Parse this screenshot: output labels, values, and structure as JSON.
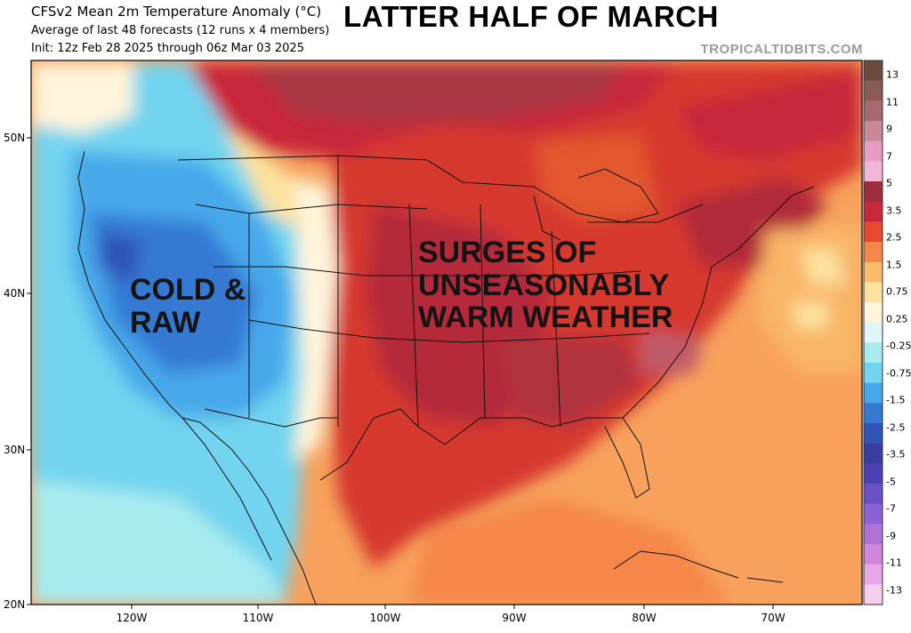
{
  "header": {
    "title": "CFSv2 Mean 2m Temperature Anomaly (°C)",
    "subtitle_1": "Average of last 48 forecasts (12 runs x 4 members)",
    "subtitle_2": "Init: 12z Feb 28 2025 through 06z Mar 03 2025",
    "headline": "LATTER HALF OF MARCH",
    "credit": "TROPICALTIDBITS.COM"
  },
  "annotations": {
    "cold": [
      "COLD &",
      "RAW"
    ],
    "warm": [
      "SURGES OF",
      "UNSEASONABLY",
      "WARM WEATHER"
    ]
  },
  "axes": {
    "lat_labels": [
      "50N",
      "40N",
      "30N",
      "20N"
    ],
    "lon_labels": [
      "120W",
      "110W",
      "100W",
      "90W",
      "80W",
      "70W"
    ]
  },
  "colorbar": {
    "labels": [
      "13",
      "11",
      "9",
      "7",
      "5",
      "3.5",
      "2.5",
      "1.5",
      "0.75",
      "0.25",
      "-0.25",
      "-0.75",
      "-1.5",
      "-2.5",
      "-3.5",
      "-5",
      "-7",
      "-9",
      "-11",
      "-13"
    ],
    "colors": [
      "#6b4a3e",
      "#8a5b55",
      "#a86a72",
      "#c9879a",
      "#e79cc4",
      "#f3b7d6",
      "#9c2d3c",
      "#c8283a",
      "#e8492f",
      "#f6874a",
      "#fbbd6a",
      "#fde3a0",
      "#fff5dc",
      "#e0f6f8",
      "#a8ecf0",
      "#72d4ef",
      "#46a8ea",
      "#3579d3",
      "#2f55b7",
      "#3b3c9f",
      "#4b40b4",
      "#6a4fc9",
      "#8d62d6",
      "#b071d9",
      "#cf86dc",
      "#e7a7e6",
      "#f7cfee"
    ]
  }
}
